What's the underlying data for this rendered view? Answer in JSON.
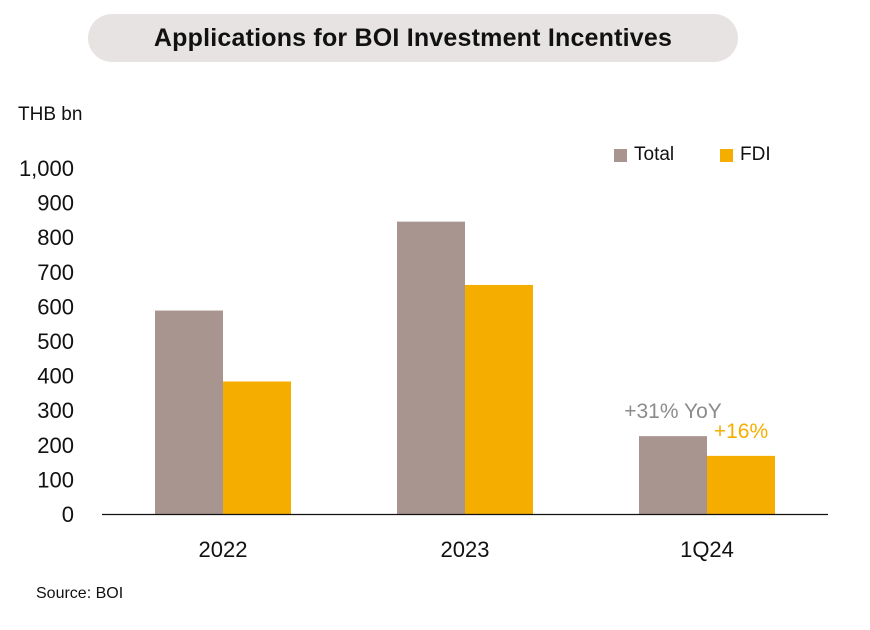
{
  "chart_data": {
    "type": "bar",
    "title": "Applications for BOI Investment Incentives",
    "unit_label": "THB bn",
    "source": "Source: BOI",
    "categories": [
      "2022",
      "2023",
      "1Q24"
    ],
    "series": [
      {
        "name": "Total",
        "color": "#a8958f",
        "values": [
          588,
          845,
          225
        ]
      },
      {
        "name": "FDI",
        "color": "#f5ae00",
        "values": [
          383,
          662,
          168
        ]
      }
    ],
    "ylim": [
      0,
      1000
    ],
    "yticks": [
      0,
      100,
      200,
      300,
      400,
      500,
      600,
      700,
      800,
      900,
      1000
    ],
    "ytick_labels": [
      "0",
      "100",
      "200",
      "300",
      "400",
      "500",
      "600",
      "700",
      "800",
      "900",
      "1,000"
    ],
    "grid": false,
    "legend_position": "top-right",
    "annotations": [
      {
        "text": "+31% YoY",
        "category": "1Q24",
        "series": "Total",
        "color": "#8c8c8c"
      },
      {
        "text": "+16%",
        "category": "1Q24",
        "series": "FDI",
        "color": "#f5ae00"
      }
    ]
  }
}
